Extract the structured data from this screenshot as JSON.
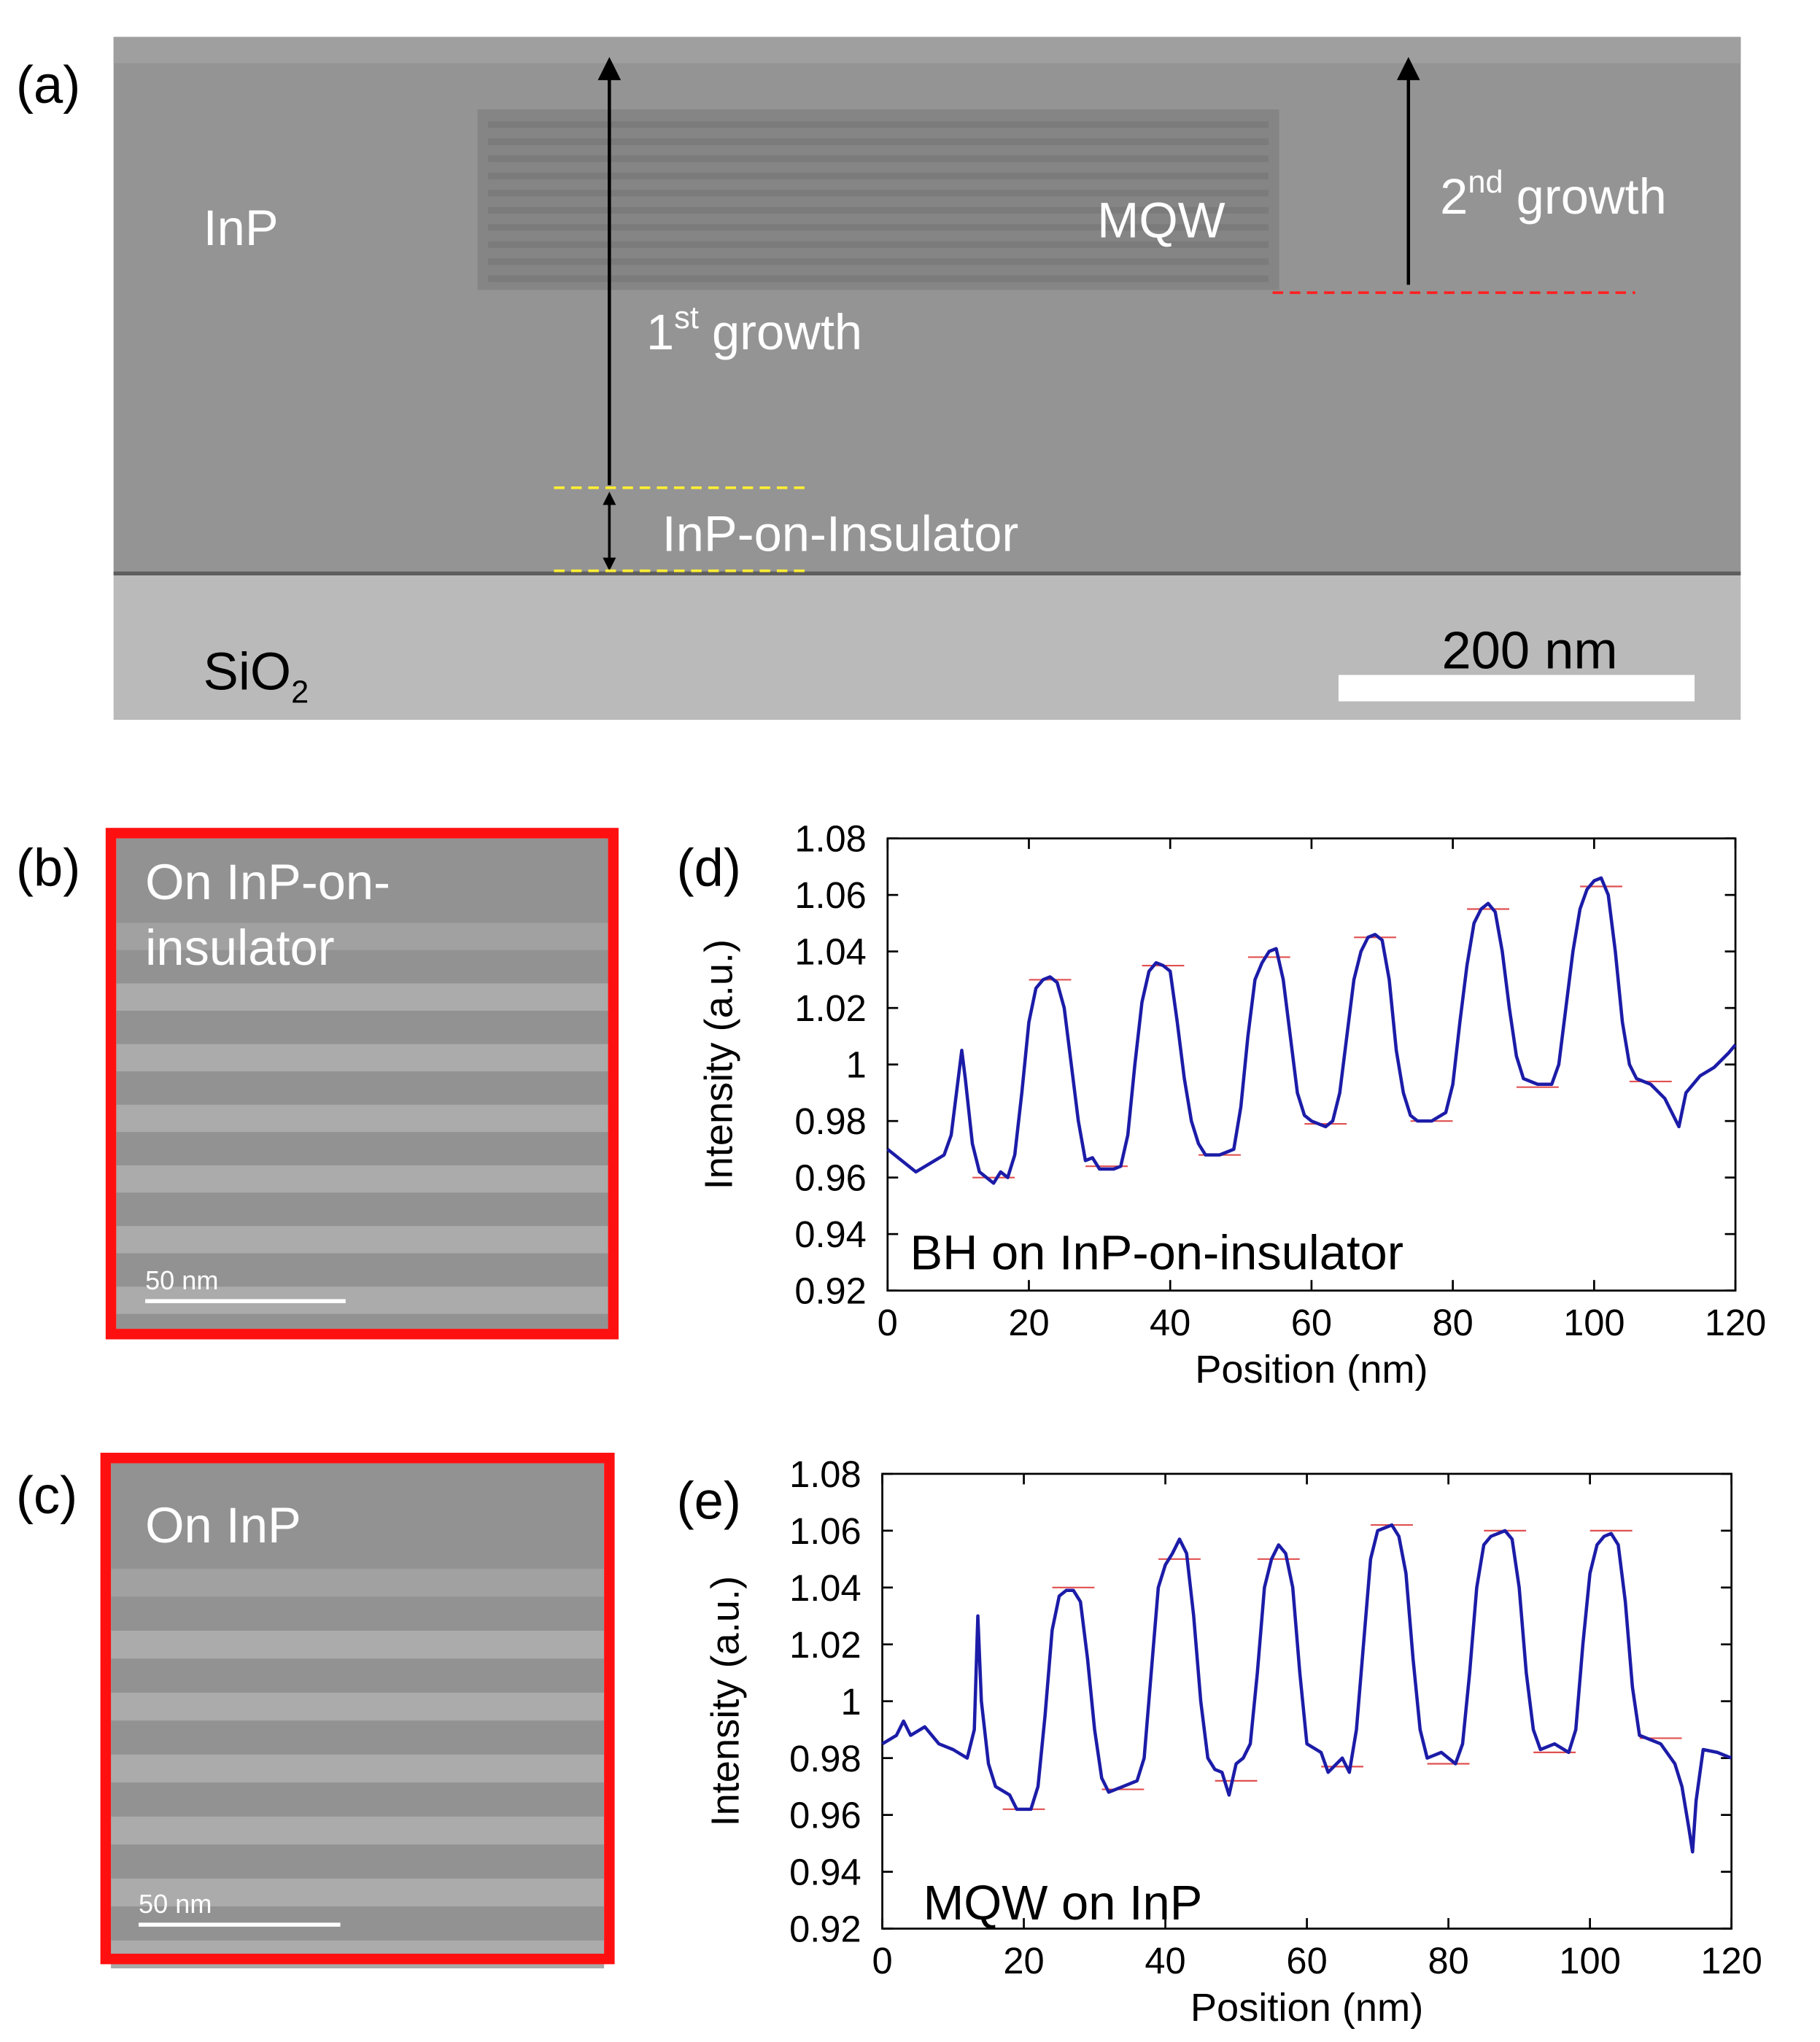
{
  "panels": {
    "a": {
      "label": "(a)",
      "inp": "InP",
      "mqw": "MQW",
      "first_growth": {
        "num": "1",
        "sup": "st",
        "text": "growth"
      },
      "second_growth": {
        "num": "2",
        "sup": "nd",
        "text": "growth"
      },
      "ioi": "InP-on-Insulator",
      "sio2": {
        "text": "SiO",
        "sub": "2"
      },
      "scale": "200 nm"
    },
    "b": {
      "label": "(b)",
      "lines": [
        "On InP-on-",
        "insulator"
      ],
      "scale": "50 nm"
    },
    "c": {
      "label": "(c)",
      "lines": [
        "On InP"
      ],
      "scale": "50 nm"
    }
  },
  "chart_data": [
    {
      "type": "line",
      "panel_label": "(d)",
      "annotation": "BH on InP-on-insulator",
      "xlabel": "Position (nm)",
      "ylabel": "Intensity (a.u.)",
      "xlim": [
        0,
        120
      ],
      "xticks": [
        0,
        20,
        40,
        60,
        80,
        100,
        120
      ],
      "ylim": [
        0.92,
        1.08
      ],
      "yticks": [
        0.92,
        0.94,
        0.96,
        0.98,
        1,
        1.02,
        1.04,
        1.06,
        1.08
      ],
      "x": [
        0,
        2,
        4,
        6,
        8,
        9,
        10,
        10.5,
        11,
        12,
        13,
        14,
        15,
        16,
        17,
        18,
        19,
        20,
        21,
        22,
        23,
        24,
        25,
        26,
        27,
        28,
        29,
        30,
        32,
        33,
        34,
        35,
        36,
        37,
        38,
        39,
        40,
        41,
        42,
        43,
        44,
        45,
        47,
        49,
        50,
        51,
        52,
        53,
        54,
        55,
        56,
        57,
        58,
        59,
        60,
        62,
        63,
        64,
        65,
        66,
        67,
        68,
        69,
        70,
        71,
        72,
        73,
        74,
        75,
        77,
        79,
        80,
        81,
        82,
        83,
        84,
        85,
        86,
        87,
        88,
        89,
        90,
        92,
        94,
        95,
        96,
        97,
        98,
        99,
        100,
        101,
        102,
        103,
        104,
        105,
        106,
        108,
        110,
        111,
        112,
        113,
        115,
        117,
        119,
        120
      ],
      "series": [
        {
          "color": "#1c1ca8",
          "values": [
            0.97,
            0.966,
            0.962,
            0.965,
            0.968,
            0.975,
            0.995,
            1.005,
            0.995,
            0.972,
            0.962,
            0.96,
            0.958,
            0.962,
            0.96,
            0.968,
            0.99,
            1.015,
            1.027,
            1.03,
            1.031,
            1.029,
            1.02,
            1.0,
            0.98,
            0.966,
            0.967,
            0.963,
            0.963,
            0.964,
            0.975,
            1.0,
            1.022,
            1.033,
            1.036,
            1.035,
            1.033,
            1.015,
            0.995,
            0.98,
            0.972,
            0.968,
            0.968,
            0.97,
            0.985,
            1.01,
            1.03,
            1.036,
            1.04,
            1.041,
            1.03,
            1.01,
            0.99,
            0.982,
            0.98,
            0.978,
            0.98,
            0.99,
            1.01,
            1.03,
            1.04,
            1.045,
            1.046,
            1.044,
            1.03,
            1.005,
            0.99,
            0.982,
            0.98,
            0.98,
            0.983,
            0.993,
            1.015,
            1.035,
            1.05,
            1.055,
            1.057,
            1.054,
            1.04,
            1.02,
            1.003,
            0.995,
            0.993,
            0.993,
            1.0,
            1.02,
            1.04,
            1.055,
            1.062,
            1.065,
            1.066,
            1.06,
            1.04,
            1.015,
            1.0,
            0.995,
            0.993,
            0.988,
            0.983,
            0.978,
            0.99,
            0.996,
            0.999,
            1.004,
            1.007
          ]
        }
      ],
      "level_marks": {
        "color": "#e05050",
        "x": [
          15,
          23,
          31,
          39,
          47,
          54,
          62,
          69,
          77,
          85,
          92,
          101,
          108
        ],
        "values": [
          0.96,
          1.03,
          0.964,
          1.035,
          0.968,
          1.038,
          0.979,
          1.045,
          0.98,
          1.055,
          0.992,
          1.063,
          0.994
        ]
      }
    },
    {
      "type": "line",
      "panel_label": "(e)",
      "annotation": "MQW on InP",
      "xlabel": "Position (nm)",
      "ylabel": "Intensity (a.u.)",
      "xlim": [
        0,
        120
      ],
      "xticks": [
        0,
        20,
        40,
        60,
        80,
        100,
        120
      ],
      "ylim": [
        0.92,
        1.08
      ],
      "yticks": [
        0.92,
        0.94,
        0.96,
        0.98,
        1,
        1.02,
        1.04,
        1.06,
        1.08
      ],
      "x": [
        0,
        2,
        3,
        4,
        6,
        8,
        10,
        12,
        13,
        13.5,
        14,
        15,
        16,
        18,
        19,
        21,
        22,
        23,
        24,
        25,
        26,
        27,
        28,
        29,
        30,
        31,
        32,
        34,
        36,
        37,
        38,
        39,
        40,
        41,
        42,
        43,
        44,
        45,
        46,
        47,
        48,
        49,
        50,
        51,
        52,
        53,
        54,
        55,
        56,
        57,
        58,
        59,
        60,
        62,
        63,
        65,
        66,
        67,
        68,
        69,
        70,
        72,
        73,
        74,
        75,
        76,
        77,
        79,
        81,
        82,
        83,
        84,
        85,
        86,
        88,
        89,
        90,
        91,
        92,
        93,
        95,
        97,
        98,
        99,
        100,
        101,
        102,
        103,
        104,
        105,
        106,
        107,
        108,
        110,
        112,
        113,
        114,
        114.5,
        115,
        116,
        118,
        120
      ],
      "series": [
        {
          "color": "#1c1ca8",
          "values": [
            0.985,
            0.988,
            0.993,
            0.988,
            0.991,
            0.985,
            0.983,
            0.98,
            0.99,
            1.03,
            1.0,
            0.978,
            0.97,
            0.967,
            0.962,
            0.962,
            0.97,
            0.995,
            1.025,
            1.037,
            1.039,
            1.039,
            1.035,
            1.015,
            0.99,
            0.973,
            0.968,
            0.97,
            0.972,
            0.98,
            1.01,
            1.04,
            1.048,
            1.052,
            1.057,
            1.052,
            1.03,
            1.0,
            0.98,
            0.976,
            0.975,
            0.967,
            0.978,
            0.98,
            0.985,
            1.01,
            1.04,
            1.05,
            1.055,
            1.052,
            1.04,
            1.01,
            0.985,
            0.982,
            0.975,
            0.98,
            0.975,
            0.99,
            1.02,
            1.05,
            1.06,
            1.062,
            1.058,
            1.045,
            1.015,
            0.99,
            0.98,
            0.982,
            0.978,
            0.985,
            1.01,
            1.04,
            1.055,
            1.058,
            1.06,
            1.057,
            1.04,
            1.01,
            0.99,
            0.983,
            0.985,
            0.982,
            0.99,
            1.02,
            1.045,
            1.055,
            1.058,
            1.059,
            1.055,
            1.035,
            1.005,
            0.988,
            0.987,
            0.985,
            0.978,
            0.97,
            0.955,
            0.947,
            0.965,
            0.983,
            0.982,
            0.98
          ]
        }
      ],
      "level_marks": {
        "color": "#e05050",
        "x": [
          20,
          27,
          34,
          42,
          50,
          56,
          65,
          72,
          80,
          88,
          95,
          103,
          110
        ],
        "values": [
          0.962,
          1.04,
          0.969,
          1.05,
          0.972,
          1.05,
          0.977,
          1.062,
          0.978,
          1.06,
          0.982,
          1.06,
          0.987
        ]
      }
    }
  ]
}
